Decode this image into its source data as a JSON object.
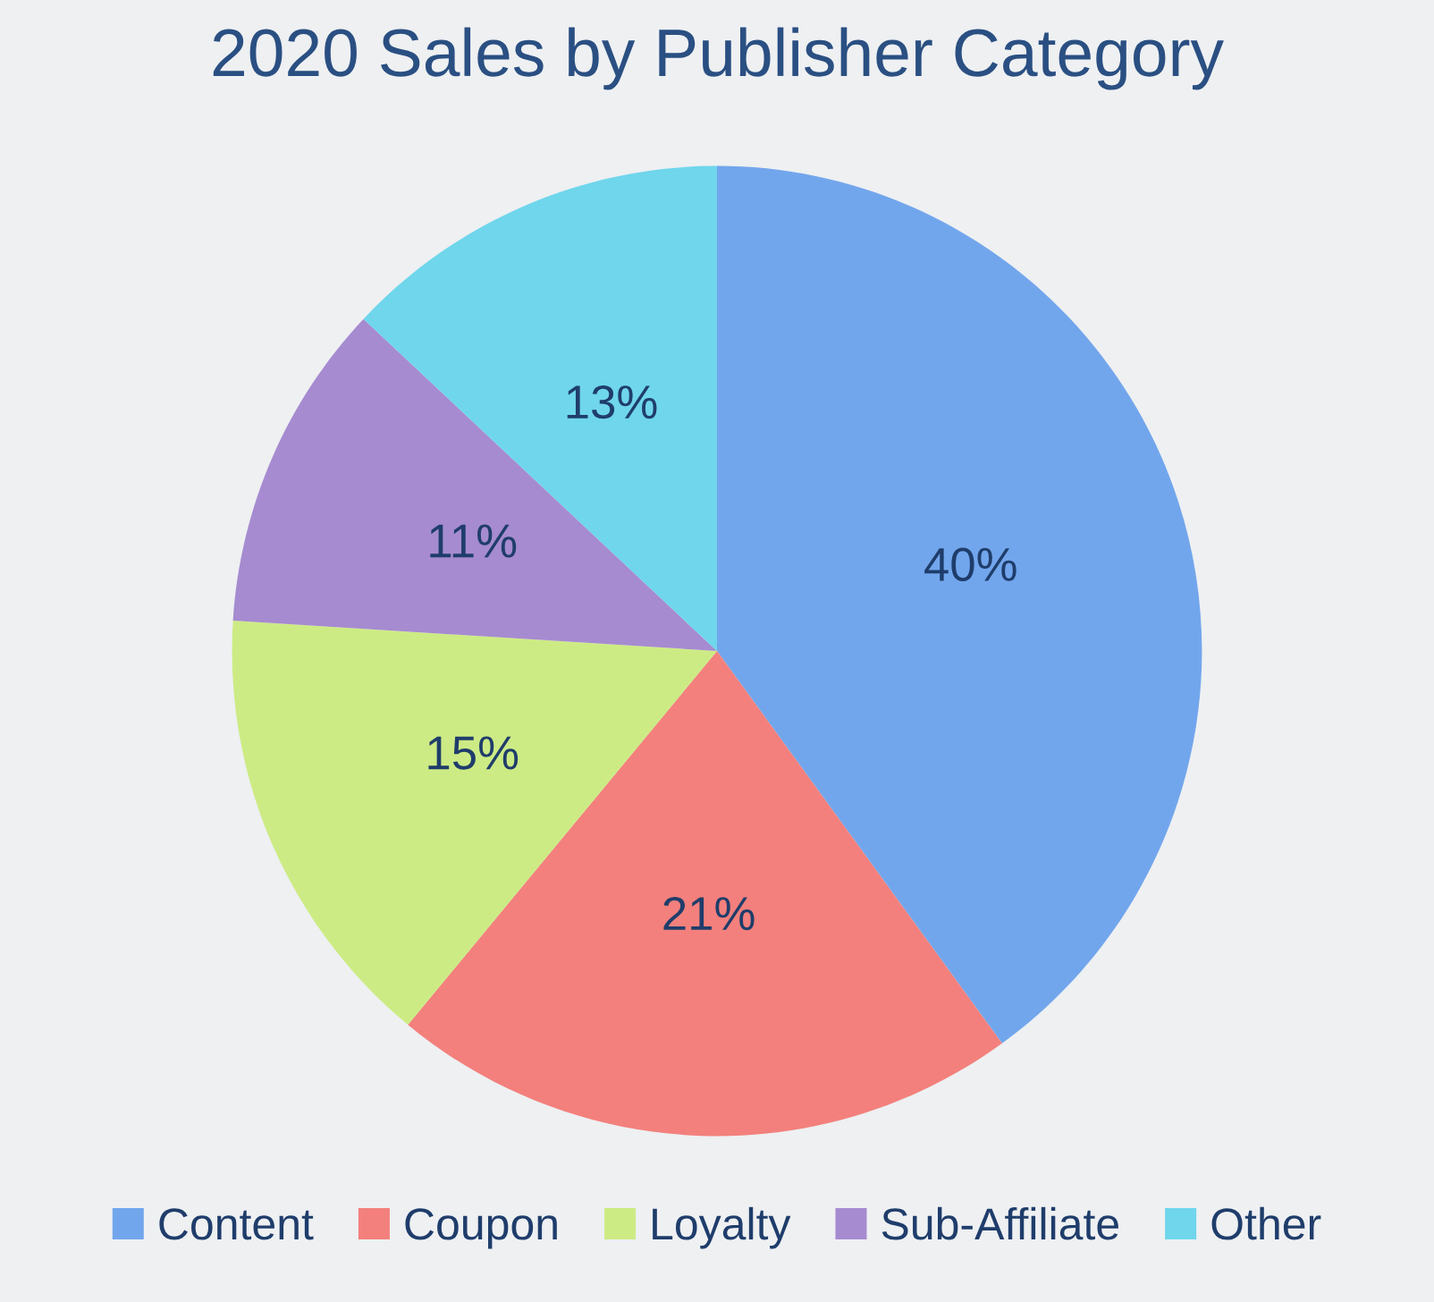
{
  "chart_data": {
    "type": "pie",
    "title": "2020 Sales by Publisher Category",
    "categories": [
      "Content",
      "Coupon",
      "Loyalty",
      "Sub-Affiliate",
      "Other"
    ],
    "values": [
      40,
      21,
      15,
      11,
      13
    ],
    "colors": [
      "#72a6ec",
      "#f3807c",
      "#cdeb84",
      "#a68bd0",
      "#6fd6ec"
    ],
    "value_labels": [
      "40%",
      "21%",
      "15%",
      "11%",
      "13%"
    ],
    "legend": "bottom"
  }
}
